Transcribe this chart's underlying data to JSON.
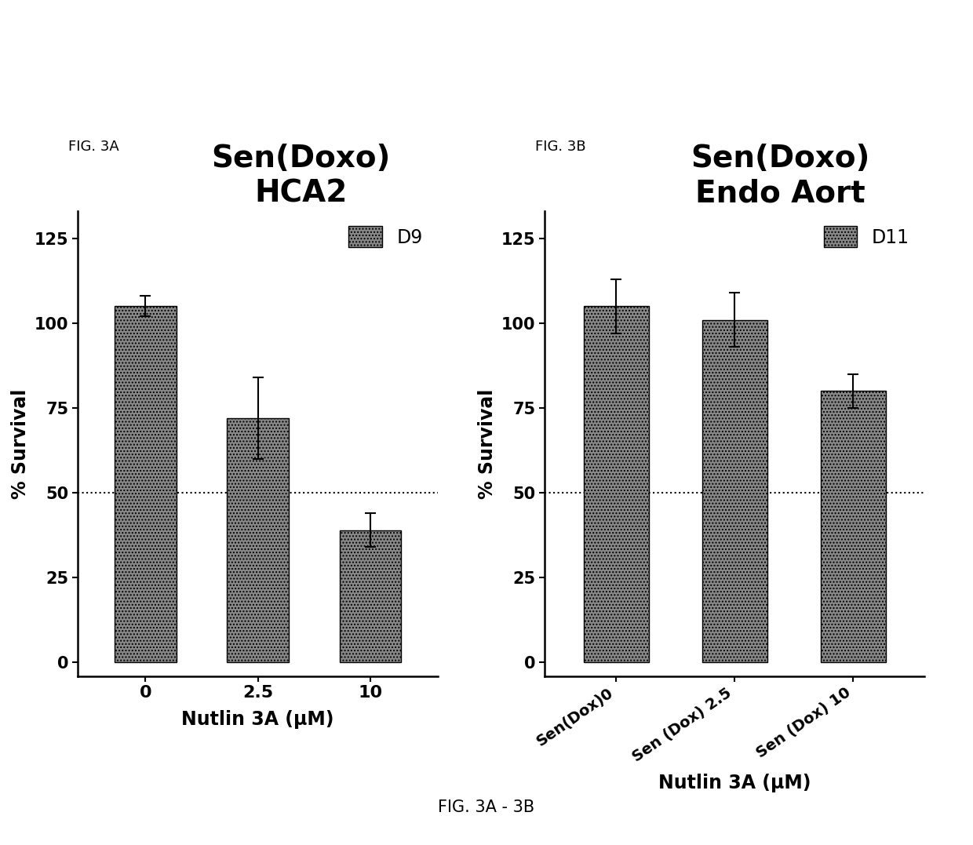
{
  "fig3a": {
    "title_line1": "Sen(Doxo)",
    "title_line2": "HCA2",
    "fig_label": "FIG. 3A",
    "legend_label": "D9",
    "categories": [
      "0",
      "2.5",
      "10"
    ],
    "values": [
      105,
      72,
      39
    ],
    "errors": [
      3,
      12,
      5
    ],
    "xlabel": "Nutlin 3A (μM)",
    "ylabel": "% Survival",
    "yticks": [
      0,
      25,
      50,
      75,
      100,
      125
    ],
    "ylim": [
      -4,
      133
    ],
    "dotted_line_y": 50,
    "bar_color": "#888888",
    "bar_hatch": "....",
    "bar_width": 0.55,
    "xtick_rotation": 0,
    "xtick_ha": "center",
    "xtick_fontsize": 16
  },
  "fig3b": {
    "title_line1": "Sen(Doxo)",
    "title_line2": "Endo Aort",
    "fig_label": "FIG. 3B",
    "legend_label": "D11",
    "categories": [
      "Sen(Dox)0",
      "Sen (Dox) 2.5",
      "Sen (Dox) 10"
    ],
    "values": [
      105,
      101,
      80
    ],
    "errors": [
      8,
      8,
      5
    ],
    "xlabel": "Nutlin 3A (μM)",
    "ylabel": "% Survival",
    "yticks": [
      0,
      25,
      50,
      75,
      100,
      125
    ],
    "ylim": [
      -4,
      133
    ],
    "dotted_line_y": 50,
    "bar_color": "#888888",
    "bar_hatch": "....",
    "bar_width": 0.55,
    "xtick_rotation": 35,
    "xtick_ha": "right",
    "xtick_fontsize": 14
  },
  "bottom_label": "FIG. 3A - 3B",
  "background_color": "#ffffff",
  "figure_width": 12.4,
  "figure_height": 10.77
}
